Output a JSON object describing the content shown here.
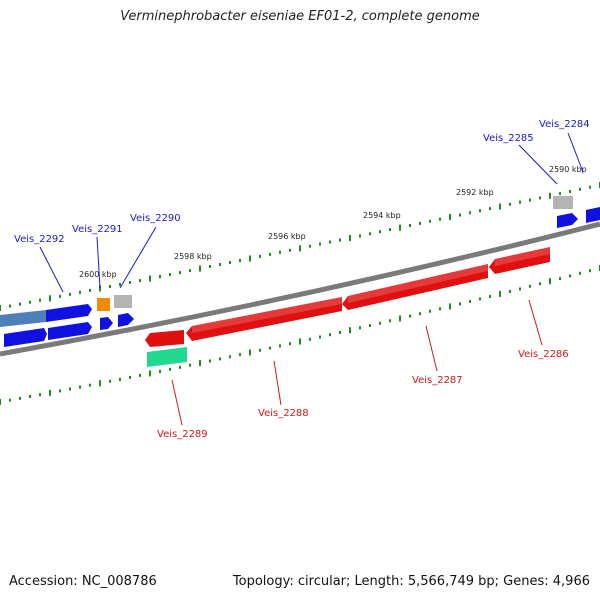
{
  "title": "Verminephrobacter eiseniae EF01-2, complete genome",
  "footer": {
    "accession": "Accession: NC_008786",
    "summary": "Topology: circular; Length: 5,566,749 bp; Genes: 4,966"
  },
  "colors": {
    "backbone": "#7a7a7a",
    "ticks": "#1f8a1f",
    "forward_label": "#1a1acc",
    "reverse_label": "#cc1a1a",
    "forward_gene": "#1010e0",
    "forward_gene_alt": "#4f7fb8",
    "reverse_gene": "#e01010",
    "reverse_gene_alt": "#22d890",
    "misc_orange": "#f08c00",
    "misc_gray": "#b4b4b4"
  },
  "kbp_labels": [
    "2600 kbp",
    "2598 kbp",
    "2596 kbp",
    "2594 kbp",
    "2592 kbp",
    "2590 kbp"
  ],
  "forward_gene_labels": [
    "Veis_2292",
    "Veis_2291",
    "Veis_2290",
    "Veis_2285",
    "Veis_2284"
  ],
  "reverse_gene_labels": [
    "Veis_2289",
    "Veis_2288",
    "Veis_2287",
    "Veis_2286"
  ]
}
